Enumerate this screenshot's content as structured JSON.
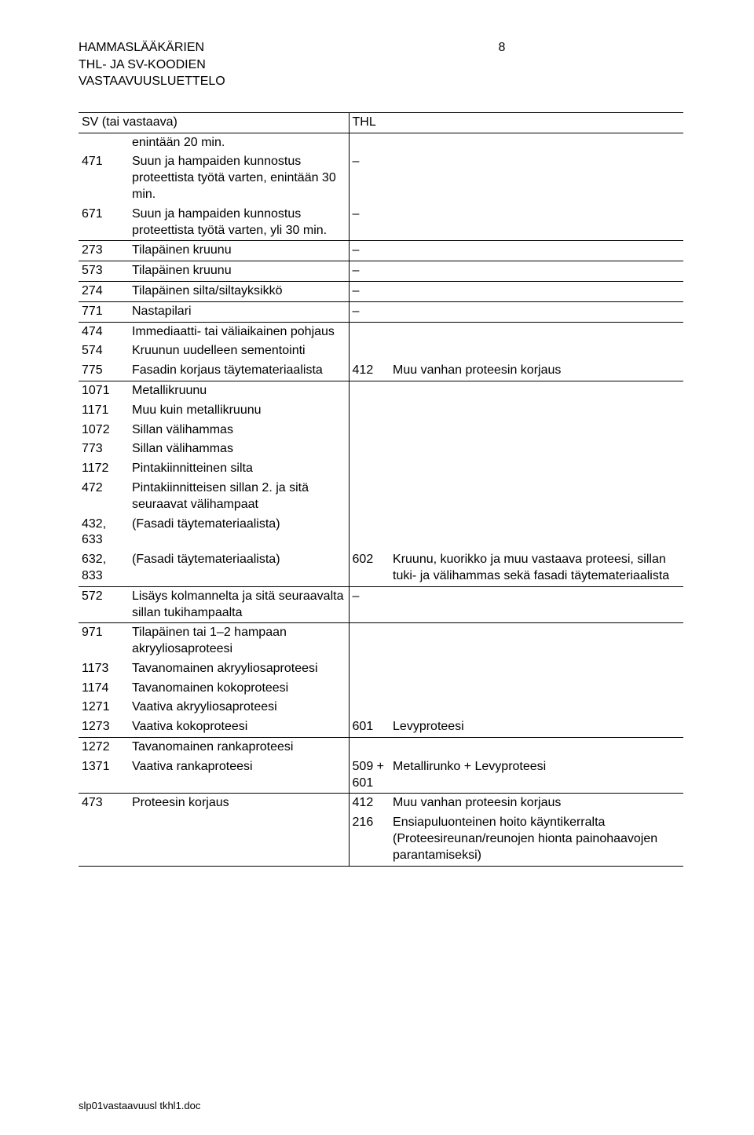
{
  "header": {
    "line1": "HAMMASLÄÄKÄRIEN",
    "page_number": "8",
    "line2": "THL- JA SV-KOODIEN",
    "line3": "VASTAAVUUSLUETTELO"
  },
  "table_headers": {
    "left": "SV (tai vastaava)",
    "right": "THL"
  },
  "rows_a": [
    {
      "code": "",
      "text": "enintään 20 min."
    },
    {
      "code": "471",
      "text": "Suun ja hampaiden kunnostus proteettista työtä varten, enintään 30 min."
    },
    {
      "code": "671",
      "text": "Suun ja hampaiden kunnostus proteettista työtä varten, yli 30 min."
    }
  ],
  "dash": "–",
  "rows_b": [
    {
      "code": "273",
      "text": "Tilapäinen kruunu"
    },
    {
      "code": "573",
      "text": "Tilapäinen kruunu"
    },
    {
      "code": "274",
      "text": "Tilapäinen silta/siltayksikkö"
    },
    {
      "code": "771",
      "text": "Nastapilari"
    }
  ],
  "rows_c": [
    {
      "code": "474",
      "text": "Immediaatti- tai väliaikainen pohjaus"
    },
    {
      "code": "574",
      "text": "Kruunun uudelleen sementointi"
    },
    {
      "code": "775",
      "text": "Fasadin korjaus täytemateriaalista"
    }
  ],
  "right_c": {
    "code": "412",
    "text": "Muu vanhan proteesin korjaus"
  },
  "rows_d": [
    {
      "code": "1071",
      "text": "Metallikruunu"
    },
    {
      "code": "1171",
      "text": "Muu kuin metallikruunu"
    },
    {
      "code": "1072",
      "text": "Sillan välihammas"
    },
    {
      "code": "773",
      "text": "Sillan välihammas"
    },
    {
      "code": "1172",
      "text": "Pintakiinnitteinen silta"
    },
    {
      "code": "472",
      "text": "Pintakiinnitteisen sillan 2. ja sitä seuraavat välihampaat"
    },
    {
      "code": "432, 633",
      "text": "(Fasadi täytemateriaalista)"
    },
    {
      "code": "632, 833",
      "text": "(Fasadi täytemateriaalista)"
    }
  ],
  "right_d": {
    "code": "602",
    "text": "Kruunu, kuorikko ja muu vastaava proteesi, sillan tuki- ja välihammas sekä fasadi täytemateriaalista"
  },
  "row_e": {
    "code": "572",
    "text": "Lisäys kolmannelta ja sitä seuraavalta sillan tukihampaalta"
  },
  "rows_f": [
    {
      "code": "971",
      "text": "Tilapäinen tai 1–2 hampaan akryyliosaproteesi"
    },
    {
      "code": "1173",
      "text": "Tavanomainen akryyliosaproteesi"
    },
    {
      "code": "1174",
      "text": "Tavanomainen kokoproteesi"
    },
    {
      "code": "1271",
      "text": "Vaativa akryyliosaproteesi"
    },
    {
      "code": "1273",
      "text": "Vaativa kokoproteesi"
    }
  ],
  "right_f": {
    "code": "601",
    "text": "Levyproteesi"
  },
  "rows_g": [
    {
      "code": "1272",
      "text": "Tavanomainen rankaproteesi"
    },
    {
      "code": "1371",
      "text": "Vaativa rankaproteesi"
    }
  ],
  "right_g": {
    "code": "509 + 601",
    "text": "Metallirunko + Levyproteesi"
  },
  "row_h": {
    "code": "473",
    "text": "Proteesin korjaus"
  },
  "right_h1": {
    "code": "412",
    "text": "Muu vanhan proteesin korjaus"
  },
  "right_h2": {
    "code": "216",
    "text": "Ensiapuluonteinen hoito käyntikerralta (Proteesireunan/reunojen hionta painohaavojen parantamiseksi)"
  },
  "footer": "slp01vastaavuusl tkhl1.doc"
}
